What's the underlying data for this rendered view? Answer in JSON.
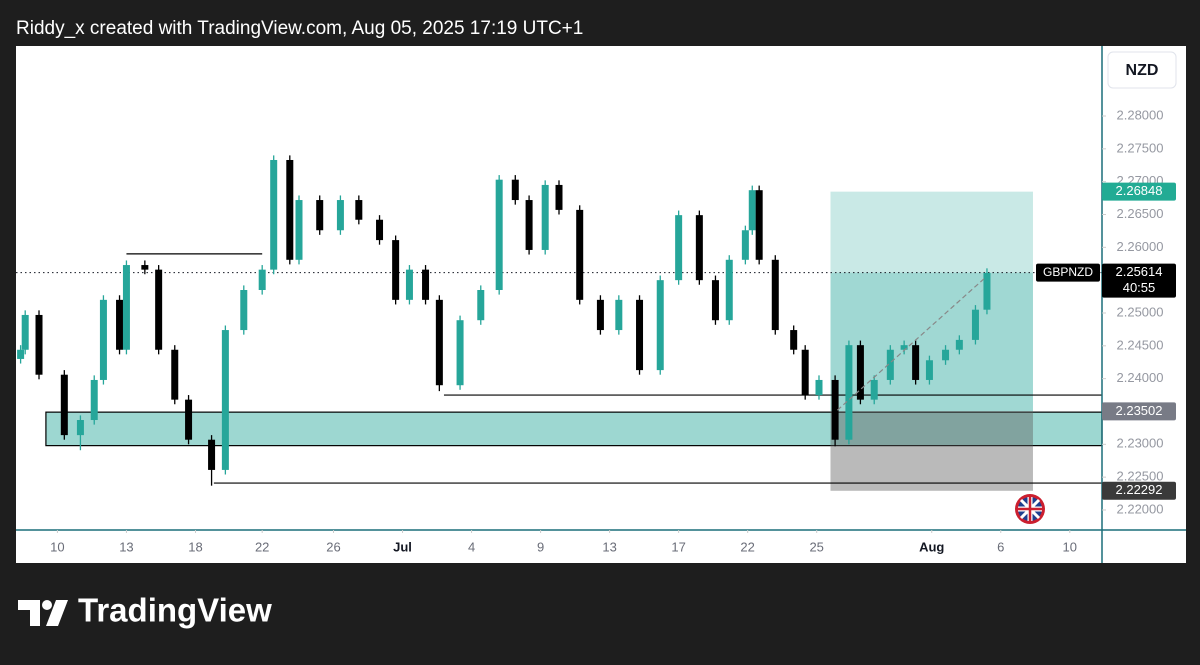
{
  "header": {
    "title": "Riddy_x created with TradingView.com, Aug 05, 2025 17:19 UTC+1"
  },
  "chart_data": {
    "type": "candlestick",
    "symbol": "GBPNZD",
    "currency": "NZD",
    "countdown": "40:55",
    "up_color": "#26a69a",
    "down_color": "#000000",
    "x": [
      -1.6,
      -1.4,
      -0.8,
      0.3,
      1.0,
      1.6,
      2.0,
      2.7,
      3.0,
      3.8,
      4.4,
      5.1,
      5.7,
      6.7,
      7.3,
      8.1,
      8.9,
      9.4,
      10.1,
      10.5,
      11.4,
      12.3,
      13.1,
      14.0,
      14.7,
      15.3,
      16.0,
      16.6,
      17.5,
      18.4,
      19.2,
      19.9,
      20.5,
      21.2,
      21.8,
      22.7,
      23.6,
      24.4,
      25.3,
      26.2,
      27.0,
      27.9,
      28.6,
      29.2,
      29.9,
      30.2,
      30.5,
      31.2,
      32.0,
      32.5,
      33.1,
      33.8,
      34.4,
      34.9,
      35.5,
      36.2,
      36.8,
      37.3,
      37.9,
      38.6,
      39.2,
      39.9,
      40.4
    ],
    "open": [
      2.243,
      2.2444,
      2.2497,
      2.2406,
      2.2314,
      2.2337,
      2.2398,
      2.252,
      2.2444,
      2.2573,
      2.2566,
      2.2444,
      2.2368,
      2.2307,
      2.2261,
      2.2474,
      2.2535,
      2.2566,
      2.2733,
      2.2581,
      2.2672,
      2.2626,
      2.2672,
      2.2642,
      2.2611,
      2.252,
      2.2566,
      2.252,
      2.239,
      2.2489,
      2.2535,
      2.2703,
      2.2672,
      2.2596,
      2.2695,
      2.2657,
      2.252,
      2.2474,
      2.252,
      2.2413,
      2.255,
      2.2649,
      2.255,
      2.2489,
      2.2581,
      2.2626,
      2.2687,
      2.2581,
      2.2474,
      2.2444,
      2.2375,
      2.2398,
      2.2307,
      2.2451,
      2.2368,
      2.2398,
      2.2444,
      2.2451,
      2.2398,
      2.2428,
      2.2444,
      2.2459,
      2.2505
    ],
    "high": [
      2.2451,
      2.2504,
      2.2504,
      2.2413,
      2.2344,
      2.2405,
      2.2527,
      2.2527,
      2.258,
      2.258,
      2.2573,
      2.2451,
      2.2375,
      2.2314,
      2.2481,
      2.2542,
      2.2573,
      2.274,
      2.274,
      2.2679,
      2.2679,
      2.2679,
      2.2679,
      2.2649,
      2.2618,
      2.2573,
      2.2573,
      2.2527,
      2.2496,
      2.2542,
      2.271,
      2.271,
      2.2679,
      2.2702,
      2.2702,
      2.2664,
      2.2527,
      2.2527,
      2.2527,
      2.2557,
      2.2656,
      2.2656,
      2.2557,
      2.2588,
      2.2633,
      2.2694,
      2.2694,
      2.2588,
      2.2481,
      2.2451,
      2.2405,
      2.2405,
      2.2458,
      2.2458,
      2.2405,
      2.2451,
      2.2458,
      2.2458,
      2.2435,
      2.2451,
      2.2466,
      2.2512,
      2.2568
    ],
    "low": [
      2.2423,
      2.2437,
      2.2399,
      2.2307,
      2.2291,
      2.233,
      2.2391,
      2.2437,
      2.2437,
      2.2559,
      2.2437,
      2.2361,
      2.23,
      2.2237,
      2.2254,
      2.2467,
      2.2528,
      2.2559,
      2.2574,
      2.2574,
      2.2619,
      2.2619,
      2.2635,
      2.2604,
      2.2513,
      2.2513,
      2.2513,
      2.2381,
      2.2383,
      2.2482,
      2.2528,
      2.2665,
      2.2589,
      2.2589,
      2.265,
      2.2513,
      2.2467,
      2.2467,
      2.2406,
      2.2406,
      2.2543,
      2.2543,
      2.2482,
      2.2482,
      2.2574,
      2.2619,
      2.2574,
      2.2467,
      2.2437,
      2.2368,
      2.2368,
      2.2297,
      2.23,
      2.2361,
      2.2361,
      2.2391,
      2.2437,
      2.2391,
      2.2391,
      2.2421,
      2.2437,
      2.2452,
      2.2498
    ],
    "close": [
      2.2444,
      2.2497,
      2.2406,
      2.2314,
      2.2337,
      2.2398,
      2.252,
      2.2444,
      2.2573,
      2.2566,
      2.2444,
      2.2368,
      2.2307,
      2.2261,
      2.2474,
      2.2535,
      2.2566,
      2.2733,
      2.2581,
      2.2672,
      2.2626,
      2.2672,
      2.2642,
      2.2611,
      2.252,
      2.2566,
      2.252,
      2.239,
      2.2489,
      2.2535,
      2.2703,
      2.2672,
      2.2596,
      2.2695,
      2.2657,
      2.252,
      2.2474,
      2.252,
      2.2413,
      2.255,
      2.2649,
      2.255,
      2.2489,
      2.2581,
      2.2626,
      2.2687,
      2.2581,
      2.2474,
      2.2444,
      2.2375,
      2.2398,
      2.2307,
      2.2451,
      2.2368,
      2.2398,
      2.2444,
      2.2451,
      2.2398,
      2.2428,
      2.2444,
      2.2459,
      2.2505,
      2.2561
    ],
    "xlim": [
      -1.8,
      45.4
    ],
    "xticks": [
      {
        "value": 0,
        "label": "10"
      },
      {
        "value": 3,
        "label": "13"
      },
      {
        "value": 6,
        "label": "18"
      },
      {
        "value": 8.9,
        "label": "22"
      },
      {
        "value": 12,
        "label": "26"
      },
      {
        "value": 15,
        "label": "Jul"
      },
      {
        "value": 18,
        "label": "4"
      },
      {
        "value": 21,
        "label": "9"
      },
      {
        "value": 24,
        "label": "13"
      },
      {
        "value": 27,
        "label": "17"
      },
      {
        "value": 30,
        "label": "22"
      },
      {
        "value": 33,
        "label": "25"
      },
      {
        "value": 38,
        "label": "Aug"
      },
      {
        "value": 41,
        "label": "6"
      },
      {
        "value": 44,
        "label": "10"
      }
    ],
    "ylim": [
      2.21695,
      2.29066
    ],
    "yticks": [
      {
        "value": 2.22,
        "label": "2.22000"
      },
      {
        "value": 2.225,
        "label": "2.22500"
      },
      {
        "value": 2.23,
        "label": "2.23000"
      },
      {
        "value": 2.235,
        "label": "2.23500"
      },
      {
        "value": 2.24,
        "label": "2.24000"
      },
      {
        "value": 2.245,
        "label": "2.24500"
      },
      {
        "value": 2.25,
        "label": "2.25000"
      },
      {
        "value": 2.255,
        "label": "2.25500"
      },
      {
        "value": 2.26,
        "label": "2.26000"
      },
      {
        "value": 2.265,
        "label": "2.26500"
      },
      {
        "value": 2.27,
        "label": "2.27000"
      },
      {
        "value": 2.275,
        "label": "2.27500"
      },
      {
        "value": 2.28,
        "label": "2.28000"
      }
    ],
    "last_price": 2.25614,
    "levels": [
      {
        "x": [
          3.0,
          8.9
        ],
        "price": 2.259
      },
      {
        "x": [
          16.8,
          45.4
        ],
        "price": 2.2375
      },
      {
        "x": [
          6.8,
          45.4
        ],
        "price": 2.2241
      }
    ],
    "zone": {
      "x": [
        -0.5,
        45.4
      ],
      "top": 2.2349,
      "bottom": 2.2298
    },
    "trendline": {
      "x": [
        33.9,
        40.3
      ],
      "y": [
        2.2352,
        2.2553
      ]
    },
    "position": {
      "x": [
        33.6,
        42.4
      ],
      "target": 2.26848,
      "entry": 2.23502,
      "stop": 2.22292
    }
  },
  "footer": {
    "brand": "TradingView"
  }
}
